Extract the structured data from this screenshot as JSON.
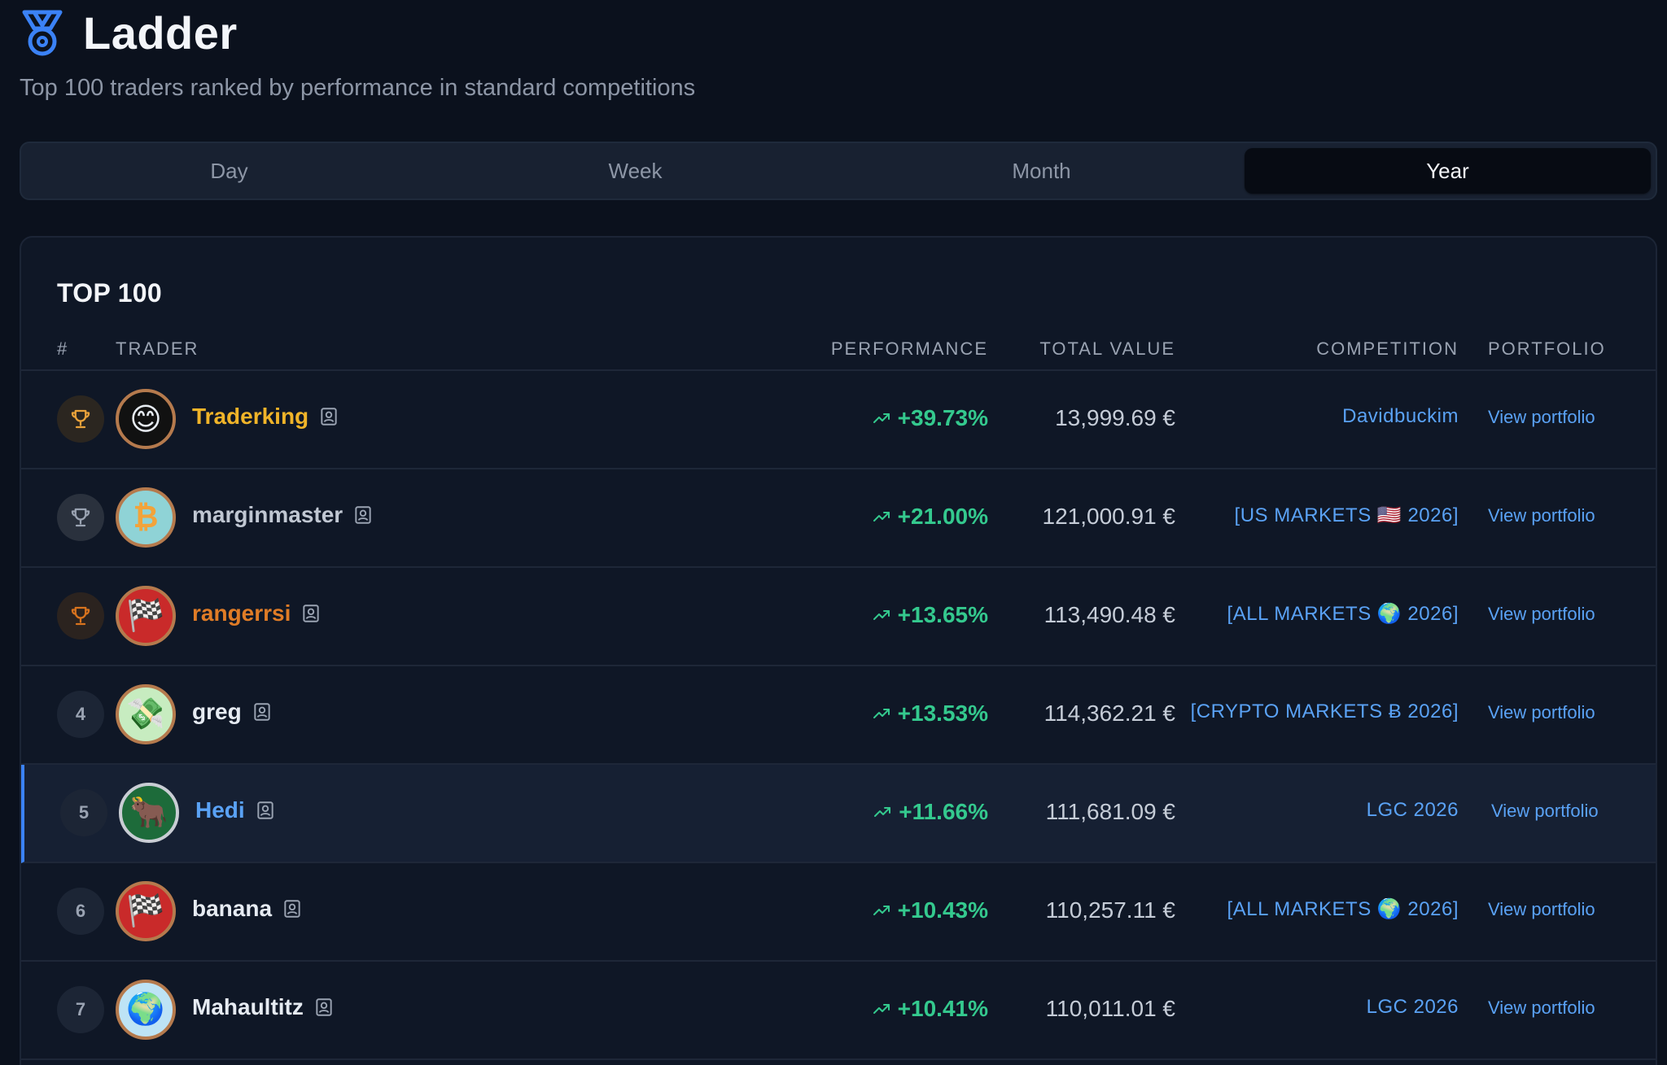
{
  "page": {
    "title": "Ladder",
    "subtitle": "Top 100 traders ranked by performance in standard competitions"
  },
  "tabs": [
    {
      "label": "Day",
      "active": false
    },
    {
      "label": "Week",
      "active": false
    },
    {
      "label": "Month",
      "active": false
    },
    {
      "label": "Year",
      "active": true
    }
  ],
  "card": {
    "title": "TOP 100",
    "columns": {
      "rank": "#",
      "trader": "TRADER",
      "performance": "PERFORMANCE",
      "total_value": "TOTAL VALUE",
      "competition": "COMPETITION",
      "portfolio": "PORTFOLIO"
    }
  },
  "rows": [
    {
      "rank": "",
      "medal": "gold",
      "avatar": "smile-avatar",
      "name": "Traderking",
      "performance": "+39.73%",
      "total_value": "13,999.69 €",
      "competition": "Davidbuckim",
      "portfolio": "View portfolio"
    },
    {
      "rank": "",
      "medal": "silver",
      "avatar": "bitcoin-avatar",
      "name": "marginmaster",
      "performance": "+21.00%",
      "total_value": "121,000.91 €",
      "competition": "[US MARKETS 🇺🇸 2026]",
      "portfolio": "View portfolio"
    },
    {
      "rank": "",
      "medal": "bronze",
      "avatar": "checkered-flag-avatar",
      "name": "rangerrsi",
      "performance": "+13.65%",
      "total_value": "113,490.48 €",
      "competition": "[ALL MARKETS 🌍 2026]",
      "portfolio": "View portfolio"
    },
    {
      "rank": "4",
      "medal": "",
      "avatar": "money-avatar",
      "name": "greg",
      "performance": "+13.53%",
      "total_value": "114,362.21 €",
      "competition": "[CRYPTO MARKETS Ƀ 2026]",
      "portfolio": "View portfolio"
    },
    {
      "rank": "5",
      "medal": "",
      "avatar": "bull-avatar",
      "name": "Hedi",
      "performance": "+11.66%",
      "total_value": "111,681.09 €",
      "competition": "LGC 2026",
      "portfolio": "View portfolio"
    },
    {
      "rank": "6",
      "medal": "",
      "avatar": "checkered-flag-avatar",
      "name": "banana",
      "performance": "+10.43%",
      "total_value": "110,257.11 €",
      "competition": "[ALL MARKETS 🌍 2026]",
      "portfolio": "View portfolio"
    },
    {
      "rank": "7",
      "medal": "",
      "avatar": "earth-avatar",
      "name": "Mahaultitz",
      "performance": "+10.41%",
      "total_value": "110,011.01 €",
      "competition": "LGC 2026",
      "portfolio": "View portfolio"
    }
  ],
  "colors": {
    "accent_blue": "#5aa2f5",
    "positive_green": "#34c98e",
    "gold": "#f0b429",
    "silver": "#c0c7d2",
    "bronze": "#e07c26"
  }
}
